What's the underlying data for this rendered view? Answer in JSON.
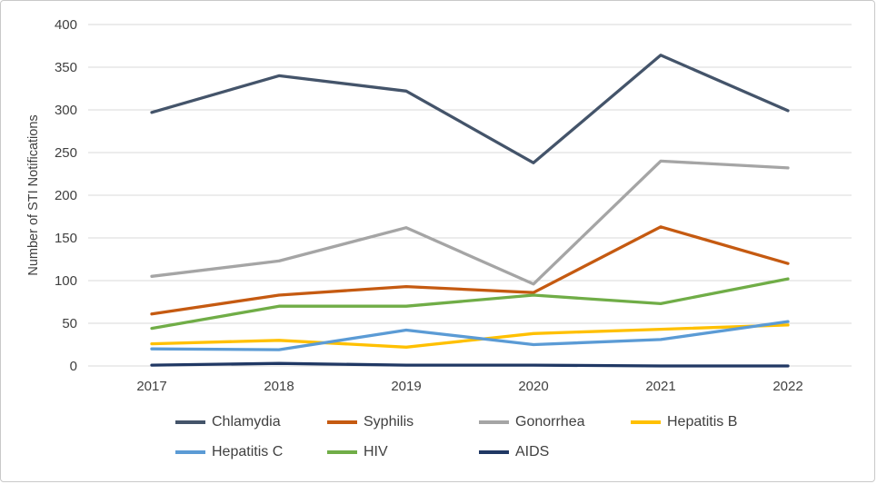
{
  "chart_data": {
    "type": "line",
    "title": "",
    "xlabel": "",
    "ylabel": "Number of STI Notifications",
    "categories": [
      "2017",
      "2018",
      "2019",
      "2020",
      "2021",
      "2022"
    ],
    "series": [
      {
        "name": "Chlamydia",
        "color": "#44546A",
        "values": [
          297,
          340,
          322,
          238,
          364,
          299
        ]
      },
      {
        "name": "Syphilis",
        "color": "#C55A11",
        "values": [
          61,
          83,
          93,
          86,
          163,
          120
        ]
      },
      {
        "name": "Gonorrhea",
        "color": "#A5A5A5",
        "values": [
          105,
          123,
          162,
          96,
          240,
          232
        ]
      },
      {
        "name": "Hepatitis B",
        "color": "#FFC000",
        "values": [
          26,
          30,
          22,
          38,
          43,
          48
        ]
      },
      {
        "name": "Hepatitis C",
        "color": "#5B9BD5",
        "values": [
          20,
          19,
          42,
          25,
          31,
          52
        ]
      },
      {
        "name": "HIV",
        "color": "#70AD47",
        "values": [
          44,
          70,
          70,
          83,
          73,
          102
        ]
      },
      {
        "name": "AIDS",
        "color": "#203864",
        "values": [
          1,
          3,
          1,
          1,
          0,
          0
        ]
      }
    ],
    "ylim": [
      0,
      400
    ],
    "ytick_step": 50,
    "grid": true,
    "gridline_color": "#D9D9D9",
    "legend_position": "bottom"
  }
}
